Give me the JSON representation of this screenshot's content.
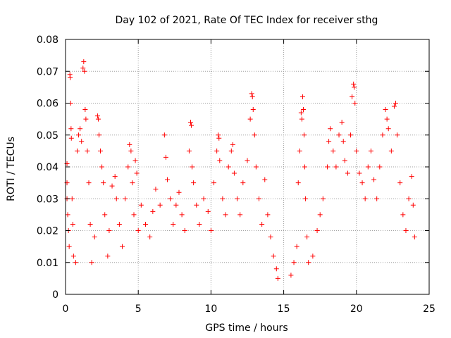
{
  "chart_data": {
    "type": "scatter",
    "title": "Day 102 of 2021, Rate Of TEC Index for receiver sthg",
    "xlabel": "GPS time / hours",
    "ylabel": "ROTI / TECUs",
    "xlim": [
      0,
      25
    ],
    "ylim": [
      0,
      0.08
    ],
    "xticks": [
      0,
      5,
      10,
      15,
      20,
      25
    ],
    "xtick_labels": [
      "0",
      "5",
      "10",
      "15",
      "20",
      "25"
    ],
    "yticks": [
      0,
      0.01,
      0.02,
      0.03,
      0.04,
      0.05,
      0.06,
      0.07,
      0.08
    ],
    "ytick_labels": [
      "0",
      "0.01",
      "0.02",
      "0.03",
      "0.04",
      "0.05",
      "0.06",
      "0.07",
      "0.08"
    ],
    "grid": true,
    "marker": "+",
    "color": "#ff0000",
    "series": [
      {
        "name": "ROTI",
        "points": [
          [
            0.1,
            0.041
          ],
          [
            0.1,
            0.035
          ],
          [
            0.1,
            0.03
          ],
          [
            0.15,
            0.025
          ],
          [
            0.2,
            0.02
          ],
          [
            0.25,
            0.015
          ],
          [
            0.3,
            0.069
          ],
          [
            0.32,
            0.068
          ],
          [
            0.35,
            0.06
          ],
          [
            0.38,
            0.052
          ],
          [
            0.4,
            0.049
          ],
          [
            0.45,
            0.03
          ],
          [
            0.5,
            0.022
          ],
          [
            0.55,
            0.012
          ],
          [
            0.7,
            0.01
          ],
          [
            0.8,
            0.045
          ],
          [
            0.9,
            0.05
          ],
          [
            1.0,
            0.052
          ],
          [
            1.1,
            0.048
          ],
          [
            1.2,
            0.071
          ],
          [
            1.25,
            0.073
          ],
          [
            1.3,
            0.07
          ],
          [
            1.35,
            0.058
          ],
          [
            1.4,
            0.055
          ],
          [
            1.5,
            0.045
          ],
          [
            1.6,
            0.035
          ],
          [
            1.7,
            0.022
          ],
          [
            1.8,
            0.01
          ],
          [
            2.0,
            0.018
          ],
          [
            2.2,
            0.056
          ],
          [
            2.25,
            0.055
          ],
          [
            2.3,
            0.05
          ],
          [
            2.4,
            0.045
          ],
          [
            2.5,
            0.04
          ],
          [
            2.6,
            0.035
          ],
          [
            2.7,
            0.025
          ],
          [
            2.9,
            0.012
          ],
          [
            3.0,
            0.02
          ],
          [
            3.2,
            0.034
          ],
          [
            3.4,
            0.037
          ],
          [
            3.5,
            0.03
          ],
          [
            3.7,
            0.022
          ],
          [
            3.9,
            0.015
          ],
          [
            4.1,
            0.03
          ],
          [
            4.3,
            0.04
          ],
          [
            4.4,
            0.047
          ],
          [
            4.5,
            0.045
          ],
          [
            4.6,
            0.035
          ],
          [
            4.7,
            0.025
          ],
          [
            4.8,
            0.042
          ],
          [
            4.9,
            0.038
          ],
          [
            5.0,
            0.02
          ],
          [
            5.2,
            0.028
          ],
          [
            5.5,
            0.022
          ],
          [
            5.8,
            0.018
          ],
          [
            6.0,
            0.026
          ],
          [
            6.2,
            0.033
          ],
          [
            6.5,
            0.028
          ],
          [
            6.8,
            0.05
          ],
          [
            6.9,
            0.043
          ],
          [
            7.0,
            0.036
          ],
          [
            7.2,
            0.03
          ],
          [
            7.4,
            0.022
          ],
          [
            7.6,
            0.028
          ],
          [
            7.8,
            0.032
          ],
          [
            8.0,
            0.025
          ],
          [
            8.2,
            0.02
          ],
          [
            8.5,
            0.045
          ],
          [
            8.6,
            0.054
          ],
          [
            8.65,
            0.053
          ],
          [
            8.7,
            0.04
          ],
          [
            8.8,
            0.035
          ],
          [
            9.0,
            0.028
          ],
          [
            9.2,
            0.022
          ],
          [
            9.5,
            0.03
          ],
          [
            9.8,
            0.026
          ],
          [
            10.0,
            0.02
          ],
          [
            10.2,
            0.035
          ],
          [
            10.4,
            0.045
          ],
          [
            10.5,
            0.05
          ],
          [
            10.55,
            0.049
          ],
          [
            10.6,
            0.042
          ],
          [
            10.8,
            0.03
          ],
          [
            11.0,
            0.025
          ],
          [
            11.2,
            0.04
          ],
          [
            11.4,
            0.045
          ],
          [
            11.5,
            0.047
          ],
          [
            11.6,
            0.038
          ],
          [
            11.8,
            0.03
          ],
          [
            12.0,
            0.025
          ],
          [
            12.2,
            0.035
          ],
          [
            12.5,
            0.042
          ],
          [
            12.7,
            0.055
          ],
          [
            12.8,
            0.063
          ],
          [
            12.85,
            0.062
          ],
          [
            12.9,
            0.058
          ],
          [
            13.0,
            0.05
          ],
          [
            13.1,
            0.04
          ],
          [
            13.3,
            0.03
          ],
          [
            13.5,
            0.022
          ],
          [
            13.7,
            0.036
          ],
          [
            13.9,
            0.025
          ],
          [
            14.1,
            0.018
          ],
          [
            14.3,
            0.012
          ],
          [
            14.5,
            0.008
          ],
          [
            14.6,
            0.005
          ],
          [
            15.5,
            0.006
          ],
          [
            15.7,
            0.01
          ],
          [
            15.9,
            0.015
          ],
          [
            16.0,
            0.035
          ],
          [
            16.1,
            0.045
          ],
          [
            16.2,
            0.057
          ],
          [
            16.25,
            0.055
          ],
          [
            16.3,
            0.062
          ],
          [
            16.35,
            0.058
          ],
          [
            16.4,
            0.05
          ],
          [
            16.45,
            0.04
          ],
          [
            16.5,
            0.03
          ],
          [
            16.6,
            0.018
          ],
          [
            16.7,
            0.01
          ],
          [
            17.0,
            0.012
          ],
          [
            17.3,
            0.02
          ],
          [
            17.5,
            0.025
          ],
          [
            17.7,
            0.03
          ],
          [
            18.0,
            0.04
          ],
          [
            18.1,
            0.048
          ],
          [
            18.2,
            0.052
          ],
          [
            18.4,
            0.045
          ],
          [
            18.6,
            0.04
          ],
          [
            18.8,
            0.05
          ],
          [
            19.0,
            0.054
          ],
          [
            19.1,
            0.048
          ],
          [
            19.2,
            0.042
          ],
          [
            19.4,
            0.038
          ],
          [
            19.6,
            0.05
          ],
          [
            19.7,
            0.062
          ],
          [
            19.8,
            0.066
          ],
          [
            19.85,
            0.065
          ],
          [
            19.9,
            0.06
          ],
          [
            20.0,
            0.045
          ],
          [
            20.2,
            0.038
          ],
          [
            20.4,
            0.035
          ],
          [
            20.6,
            0.03
          ],
          [
            20.8,
            0.04
          ],
          [
            21.0,
            0.045
          ],
          [
            21.2,
            0.036
          ],
          [
            21.4,
            0.03
          ],
          [
            21.6,
            0.04
          ],
          [
            21.8,
            0.05
          ],
          [
            22.0,
            0.058
          ],
          [
            22.1,
            0.055
          ],
          [
            22.2,
            0.052
          ],
          [
            22.4,
            0.045
          ],
          [
            22.6,
            0.059
          ],
          [
            22.7,
            0.06
          ],
          [
            22.8,
            0.05
          ],
          [
            23.0,
            0.035
          ],
          [
            23.2,
            0.025
          ],
          [
            23.4,
            0.02
          ],
          [
            23.6,
            0.03
          ],
          [
            23.8,
            0.037
          ],
          [
            23.9,
            0.028
          ],
          [
            24.0,
            0.018
          ]
        ]
      }
    ]
  }
}
